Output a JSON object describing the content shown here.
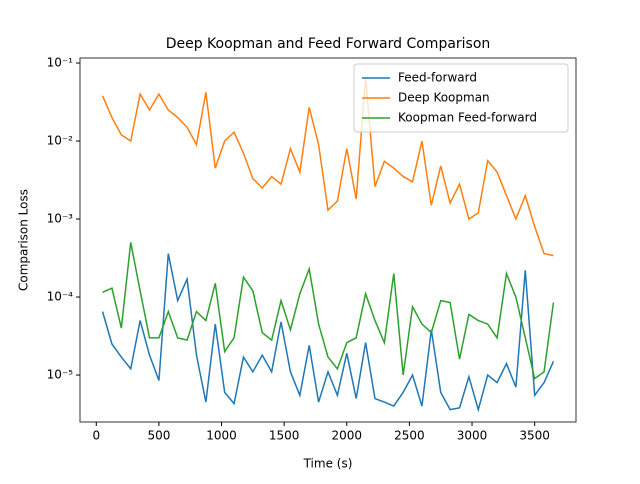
{
  "chart_data": {
    "type": "line",
    "title": "Deep Koopman and Feed Forward Comparison",
    "xlabel": "Time (s)",
    "ylabel": "Comparison Loss",
    "x": [
      50,
      125,
      200,
      275,
      350,
      425,
      500,
      575,
      650,
      725,
      800,
      875,
      950,
      1025,
      1100,
      1175,
      1250,
      1325,
      1400,
      1475,
      1550,
      1625,
      1700,
      1775,
      1850,
      1925,
      2000,
      2075,
      2150,
      2225,
      2300,
      2375,
      2450,
      2525,
      2600,
      2675,
      2750,
      2825,
      2900,
      2975,
      3050,
      3125,
      3200,
      3275,
      3350,
      3425,
      3500,
      3575,
      3650
    ],
    "series": [
      {
        "name": "Feed-forward",
        "color": "#1f77b4",
        "values": [
          6.5e-05,
          2.5e-05,
          1.7e-05,
          1.2e-05,
          5e-05,
          1.8e-05,
          8.5e-06,
          0.00036,
          9e-05,
          0.00017,
          1.8e-05,
          4.5e-06,
          4.5e-05,
          6e-06,
          4.3e-06,
          1.7e-05,
          1.1e-05,
          1.8e-05,
          1.1e-05,
          4.8e-05,
          1.1e-05,
          5.5e-06,
          2.4e-05,
          4.5e-06,
          1.1e-05,
          5.5e-06,
          1.9e-05,
          5e-06,
          2.6e-05,
          5e-06,
          4.5e-06,
          4e-06,
          6e-06,
          1e-05,
          4e-06,
          3.8e-05,
          6e-06,
          3.6e-06,
          3.8e-06,
          9.5e-06,
          3.6e-06,
          1e-05,
          8e-06,
          1.4e-05,
          7e-06,
          0.00022,
          5.5e-06,
          8e-06,
          1.5e-05
        ]
      },
      {
        "name": "Deep Koopman",
        "color": "#ff7f0e",
        "values": [
          0.038,
          0.02,
          0.012,
          0.01,
          0.04,
          0.025,
          0.04,
          0.025,
          0.02,
          0.015,
          0.009,
          0.042,
          0.0045,
          0.01,
          0.013,
          0.007,
          0.0033,
          0.0025,
          0.0035,
          0.0028,
          0.008,
          0.004,
          0.027,
          0.009,
          0.0013,
          0.0017,
          0.008,
          0.0018,
          0.065,
          0.0026,
          0.0055,
          0.0045,
          0.0035,
          0.003,
          0.01,
          0.0015,
          0.0048,
          0.0016,
          0.0028,
          0.001,
          0.0012,
          0.0056,
          0.004,
          0.002,
          0.001,
          0.002,
          0.0008,
          0.00036,
          0.00034
        ]
      },
      {
        "name": "Koopman Feed-forward",
        "color": "#2ca02c",
        "values": [
          0.000115,
          0.00013,
          4e-05,
          0.0005,
          0.00012,
          3e-05,
          3e-05,
          6.5e-05,
          3e-05,
          2.8e-05,
          6.5e-05,
          5e-05,
          0.00015,
          2e-05,
          3e-05,
          0.00018,
          0.00012,
          3.5e-05,
          2.8e-05,
          9e-05,
          3.8e-05,
          0.00011,
          0.00023,
          4.5e-05,
          1.7e-05,
          1.2e-05,
          2.6e-05,
          3e-05,
          0.00011,
          5e-05,
          2.6e-05,
          0.0002,
          1e-05,
          7.5e-05,
          4.5e-05,
          3.5e-05,
          9e-05,
          8.5e-05,
          1.6e-05,
          6e-05,
          5e-05,
          4.5e-05,
          3e-05,
          0.0002,
          0.0001,
          3e-05,
          9e-06,
          1.1e-05,
          8.5e-05
        ]
      }
    ],
    "xlim": [
      -130,
      3830
    ],
    "ylim": [
      2.5e-06,
      0.116
    ],
    "log_y": true,
    "xticks": [
      0,
      500,
      1000,
      1500,
      2000,
      2500,
      3000,
      3500
    ],
    "yticks": [
      {
        "value": 1e-05,
        "label": "10⁻⁵"
      },
      {
        "value": 0.0001,
        "label": "10⁻⁴"
      },
      {
        "value": 0.001,
        "label": "10⁻³"
      },
      {
        "value": 0.01,
        "label": "10⁻²"
      },
      {
        "value": 0.1,
        "label": "10⁻¹"
      }
    ],
    "legend": "upper right"
  }
}
